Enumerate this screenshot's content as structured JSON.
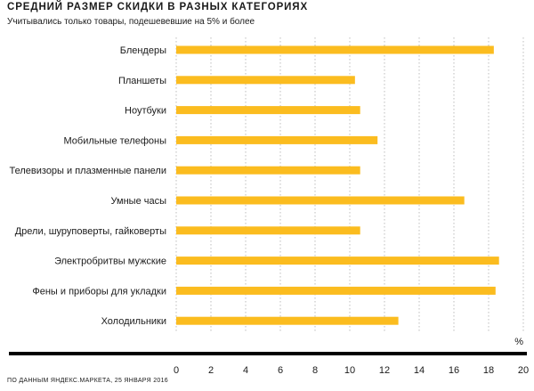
{
  "title": "СРЕДНИЙ РАЗМЕР СКИДКИ В РАЗНЫХ КАТЕГОРИЯХ",
  "subtitle": "Учитывались только товары, подешевевшие на 5% и более",
  "source": "ПО ДАННЫМ ЯНДЕКС.МАРКЕТА, 25 ЯНВАРЯ 2016",
  "colors": {
    "bar": "#fbbc1f",
    "grid": "#bdbdbd",
    "axis": "#000000"
  },
  "chart_data": {
    "type": "bar",
    "orientation": "horizontal",
    "categories": [
      "Блендеры",
      "Планшеты",
      "Ноутбуки",
      "Мобильные телефоны",
      "Телевизоры и плазменные панели",
      "Умные часы",
      "Дрели, шуруповерты, гайковерты",
      "Электробритвы мужские",
      "Фены и приборы для укладки",
      "Холодильники"
    ],
    "values": [
      18.3,
      10.3,
      10.6,
      11.6,
      10.6,
      16.6,
      10.6,
      18.6,
      18.4,
      12.8
    ],
    "xunit": "%",
    "xlim": [
      0,
      20
    ],
    "xticks": [
      0,
      2,
      4,
      6,
      8,
      10,
      12,
      14,
      16,
      18,
      20
    ],
    "grid": true,
    "grid_axis": "x"
  }
}
